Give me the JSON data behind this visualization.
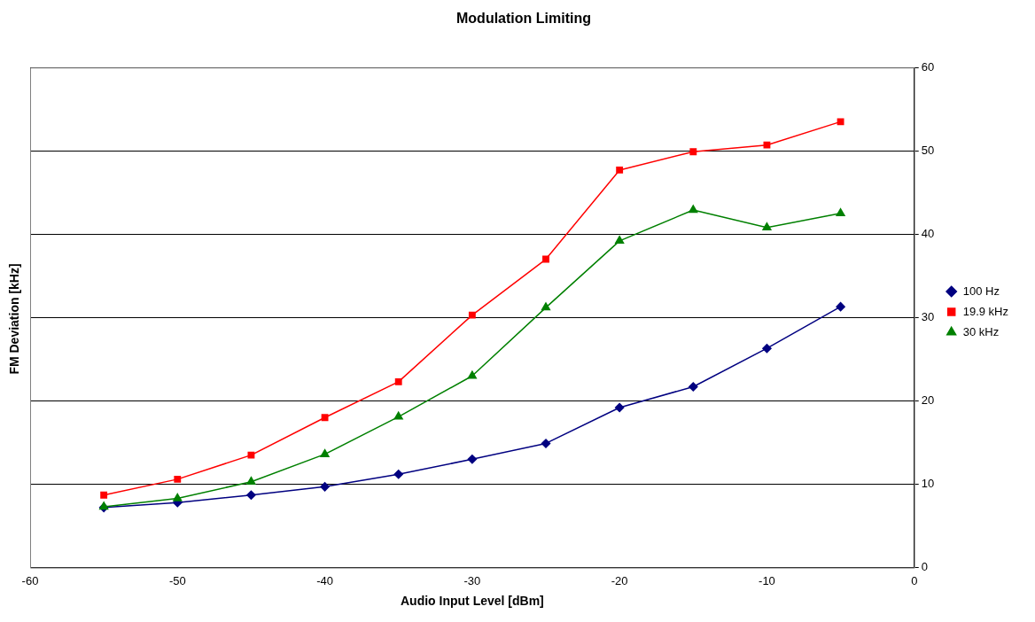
{
  "chart_data": {
    "type": "line",
    "title": "Modulation Limiting",
    "xlabel": "Audio Input Level [dBm]",
    "ylabel": "FM Deviation [kHz]",
    "x": [
      -55,
      -50,
      -45,
      -40,
      -35,
      -30,
      -25,
      -20,
      -15,
      -10,
      -5
    ],
    "series": [
      {
        "name": "100 Hz",
        "color": "#000080",
        "marker": "diamond",
        "values": [
          7.2,
          7.8,
          8.7,
          9.7,
          11.2,
          13.0,
          14.9,
          19.2,
          21.7,
          26.3,
          31.3
        ]
      },
      {
        "name": "19.9 kHz",
        "color": "#ff0000",
        "marker": "square",
        "values": [
          8.7,
          10.6,
          13.5,
          18.0,
          22.3,
          30.3,
          37.0,
          47.7,
          49.9,
          50.7,
          53.5
        ]
      },
      {
        "name": "30 kHz",
        "color": "#008000",
        "marker": "triangle",
        "values": [
          7.3,
          8.3,
          10.3,
          13.6,
          18.1,
          23.0,
          31.2,
          39.2,
          42.9,
          40.8,
          42.5
        ]
      }
    ],
    "xlim": [
      -60,
      0
    ],
    "xticks": [
      -60,
      -50,
      -40,
      -30,
      -20,
      -10,
      0
    ],
    "ylim": [
      0,
      60
    ],
    "yticks": [
      0,
      10,
      20,
      30,
      40,
      50,
      60
    ],
    "grid": "y",
    "legend": "right",
    "line_style": "solid"
  }
}
